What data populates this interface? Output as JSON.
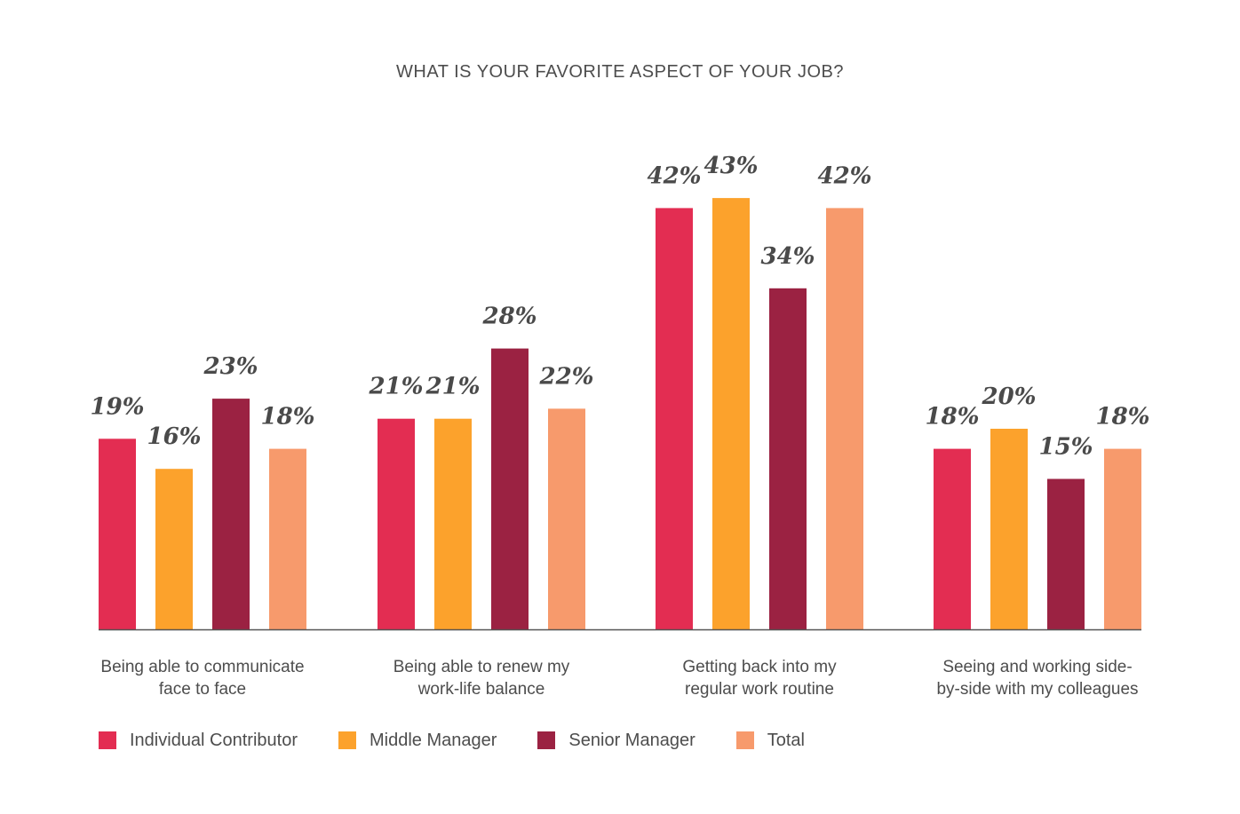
{
  "chart_data": {
    "type": "bar",
    "title": "WHAT IS YOUR FAVORITE ASPECT OF YOUR JOB?",
    "categories": [
      [
        "Being able to communicate",
        "face to face"
      ],
      [
        "Being able to renew my",
        "work-life balance"
      ],
      [
        "Getting back into my",
        "regular work routine"
      ],
      [
        "Seeing and working side-",
        "by-side with my colleagues"
      ]
    ],
    "series": [
      {
        "name": "Individual Contributor",
        "color": "#e32d52",
        "values": [
          19,
          21,
          42,
          18
        ],
        "labels": [
          "19%",
          "21%",
          "42%",
          "18%"
        ]
      },
      {
        "name": "Middle Manager",
        "color": "#fca22c",
        "values": [
          16,
          21,
          43,
          20
        ],
        "labels": [
          "16%",
          "21%",
          "43%",
          "20%"
        ]
      },
      {
        "name": "Senior Manager",
        "color": "#9b2242",
        "values": [
          23,
          28,
          34,
          15
        ],
        "labels": [
          "23%",
          "28%",
          "34%",
          "15%"
        ]
      },
      {
        "name": "Total",
        "color": "#f79a6c",
        "values": [
          18,
          22,
          42,
          18
        ],
        "labels": [
          "18%",
          "22%",
          "42%",
          "18%"
        ]
      }
    ],
    "ylim": [
      0,
      50
    ],
    "grid": false,
    "legend_position": "bottom-left"
  }
}
